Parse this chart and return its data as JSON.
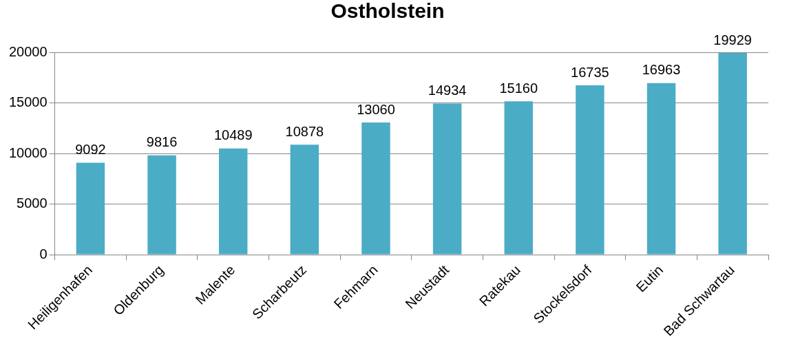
{
  "chart_data": {
    "type": "bar",
    "title": "Ostholstein",
    "categories": [
      "Heiligenhafen",
      "Oldenburg",
      "Malente",
      "Scharbeutz",
      "Fehmarn",
      "Neustadt",
      "Ratekau",
      "Stockelsdorf",
      "Eutin",
      "Bad Schwartau"
    ],
    "values": [
      9092,
      9816,
      10489,
      10878,
      13060,
      14934,
      15160,
      16735,
      16963,
      19929
    ],
    "color": "#4bacc6",
    "ylim": [
      0,
      20000
    ],
    "yticks": [
      0,
      5000,
      10000,
      15000,
      20000
    ],
    "grid": "y",
    "data_labels": true
  }
}
